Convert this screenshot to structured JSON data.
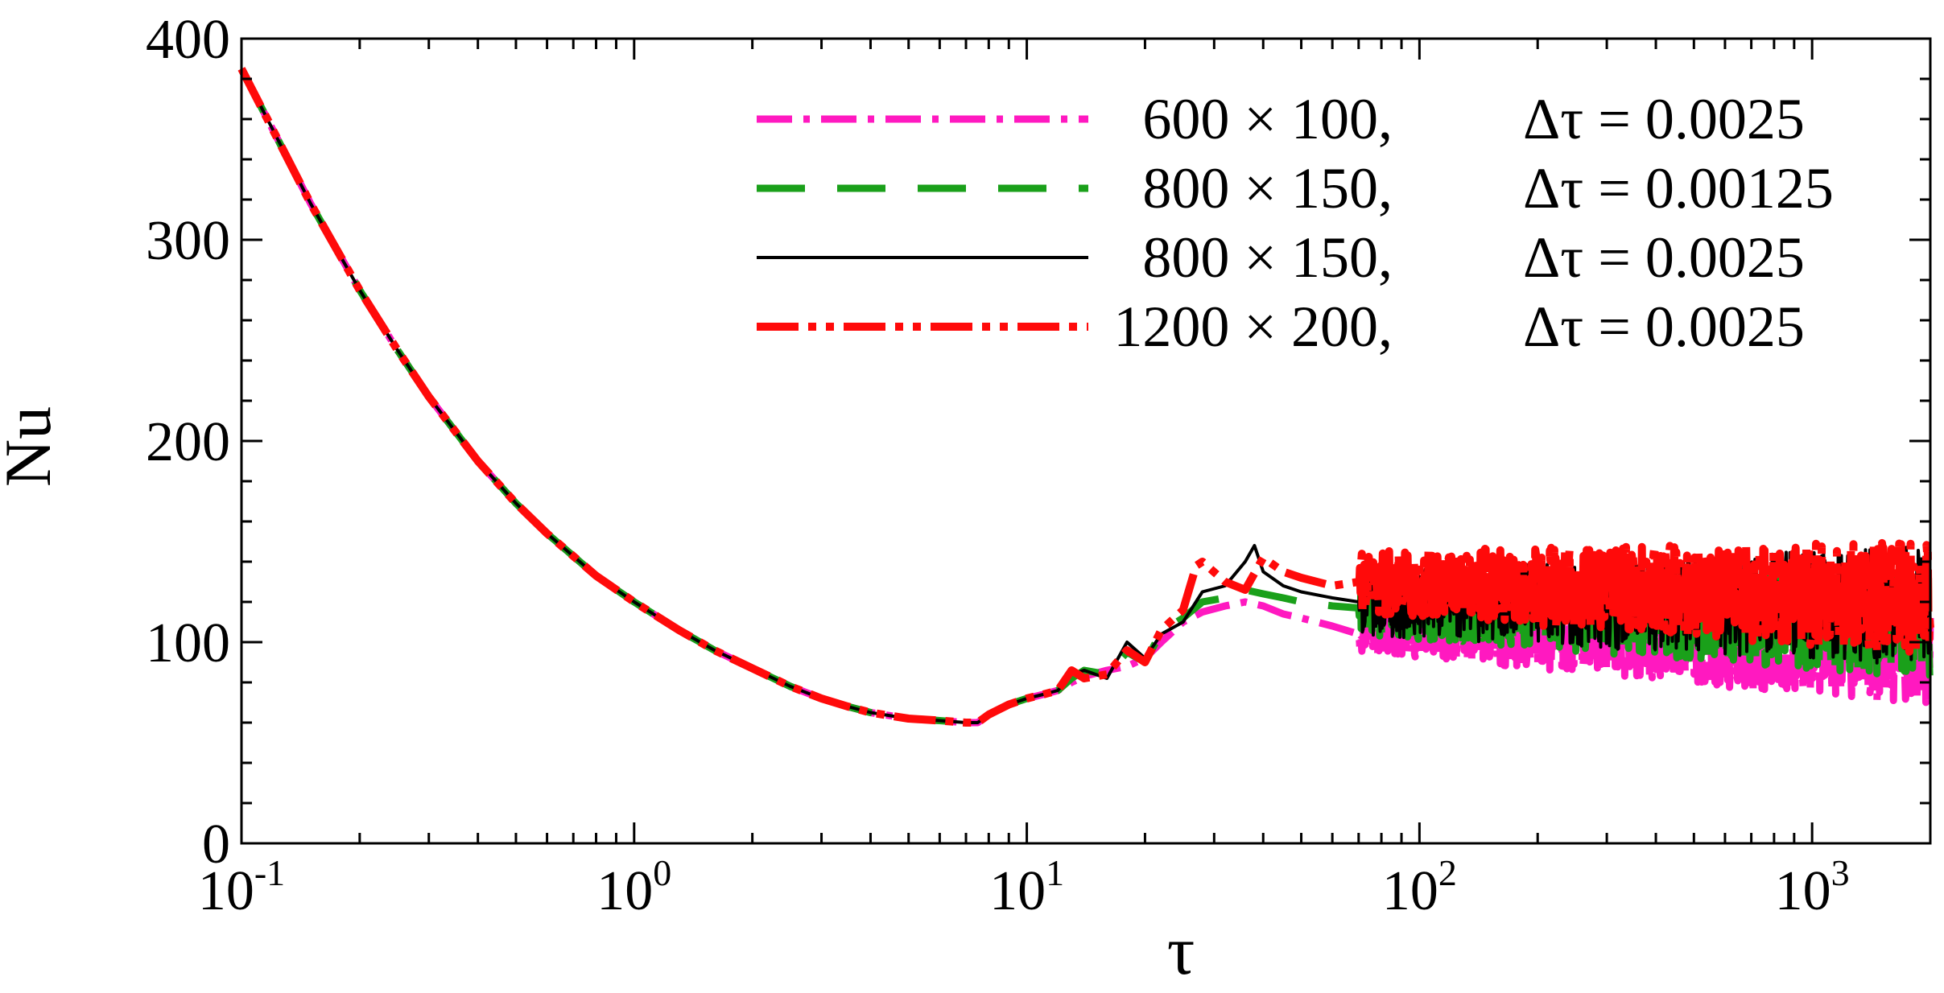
{
  "chart_data": {
    "type": "line",
    "title": "",
    "xlabel": "τ",
    "ylabel": "Nu",
    "xscale": "log",
    "xlim": [
      0.1,
      2000
    ],
    "ylim": [
      0,
      400
    ],
    "grid": false,
    "legend_position": "top-right",
    "x_ticks": [
      {
        "value": 0.1,
        "base": "10",
        "exp": "-1"
      },
      {
        "value": 1,
        "base": "10",
        "exp": "0"
      },
      {
        "value": 10,
        "base": "10",
        "exp": "1"
      },
      {
        "value": 100,
        "base": "10",
        "exp": "2"
      },
      {
        "value": 1000,
        "base": "10",
        "exp": "3"
      }
    ],
    "y_ticks": [
      {
        "value": 0,
        "label": "0"
      },
      {
        "value": 100,
        "label": "100"
      },
      {
        "value": 200,
        "label": "200"
      },
      {
        "value": 300,
        "label": "300"
      },
      {
        "value": 400,
        "label": "400"
      }
    ],
    "common_curve": {
      "x": [
        0.1,
        0.12,
        0.15,
        0.2,
        0.25,
        0.3,
        0.4,
        0.5,
        0.6,
        0.8,
        1.0,
        1.3,
        1.6,
        2.0,
        2.5,
        3.0,
        3.5,
        4.0,
        5.0,
        6.0,
        7.0,
        7.5
      ],
      "y": [
        385,
        355,
        318,
        275,
        245,
        222,
        190,
        169,
        154,
        133,
        120,
        106,
        96,
        87,
        78,
        72,
        68,
        65,
        62,
        61,
        60,
        60
      ]
    },
    "series": [
      {
        "name": "600 × 100,  Δτ = 0.0025",
        "mesh": "600 × 100,",
        "dt_label": "Δτ = 0.0025",
        "color": "#ff19c0",
        "dash": "44 14 8 14",
        "width": 9,
        "transition": {
          "x": [
            7.5,
            8,
            9,
            10,
            11,
            12,
            13,
            14,
            16,
            18,
            20,
            22,
            25,
            28,
            32,
            36,
            40,
            45,
            50,
            60,
            70
          ],
          "y": [
            60,
            64,
            69,
            72,
            74,
            76,
            80,
            83,
            86,
            88,
            92,
            100,
            110,
            115,
            118,
            120,
            118,
            114,
            112,
            108,
            104
          ]
        },
        "noise": {
          "x_start": 50,
          "base_start": 108,
          "base_end": 92,
          "amplitude": 24
        }
      },
      {
        "name": "800 × 150,  Δτ = 0.00125",
        "mesh": "800 × 150,",
        "dt_label": "Δτ = 0.00125",
        "color": "#1aa01a",
        "dash": "60 40",
        "width": 9,
        "transition": {
          "x": [
            7.5,
            8,
            9,
            10,
            11,
            12,
            13,
            14,
            16,
            18,
            20,
            22,
            25,
            28,
            32,
            36,
            40,
            45,
            50,
            60,
            70
          ],
          "y": [
            60,
            64,
            69,
            72,
            74,
            76,
            82,
            86,
            84,
            95,
            90,
            105,
            112,
            120,
            122,
            126,
            124,
            122,
            120,
            118,
            117
          ]
        },
        "noise": {
          "x_start": 60,
          "base_start": 118,
          "base_end": 108,
          "amplitude": 26
        }
      },
      {
        "name": "800 × 150,  Δτ = 0.0025",
        "mesh": "800 × 150,",
        "dt_label": "Δτ = 0.0025",
        "color": "#000000",
        "dash": "",
        "width": 4,
        "transition": {
          "x": [
            7.5,
            8,
            9,
            10,
            11,
            12,
            13,
            14,
            16,
            18,
            20,
            22,
            25,
            28,
            32,
            36,
            38,
            40,
            45,
            50,
            60,
            70
          ],
          "y": [
            60,
            64,
            69,
            72,
            74,
            76,
            84,
            86,
            82,
            100,
            92,
            104,
            110,
            125,
            128,
            140,
            148,
            135,
            128,
            125,
            122,
            120
          ]
        },
        "noise": {
          "x_start": 60,
          "base_start": 120,
          "base_end": 118,
          "amplitude": 30
        }
      },
      {
        "name": "1200 × 200,  Δτ = 0.0025",
        "mesh": "1200 × 200,",
        "dt_label": "Δτ = 0.0025",
        "color": "#ff0a0a",
        "dash": "52 12 10 12 10 12",
        "width": 10,
        "transition": {
          "x": [
            7.5,
            8,
            9,
            10,
            11,
            12,
            13,
            14,
            16,
            18,
            20,
            22,
            25,
            27,
            28,
            32,
            36,
            40,
            45,
            50,
            60,
            70
          ],
          "y": [
            60,
            64,
            69,
            72,
            74,
            76,
            86,
            82,
            84,
            96,
            90,
            106,
            116,
            138,
            140,
            130,
            126,
            142,
            135,
            132,
            128,
            130
          ]
        },
        "noise": {
          "x_start": 60,
          "base_start": 130,
          "base_end": 122,
          "amplitude": 28
        }
      }
    ]
  }
}
